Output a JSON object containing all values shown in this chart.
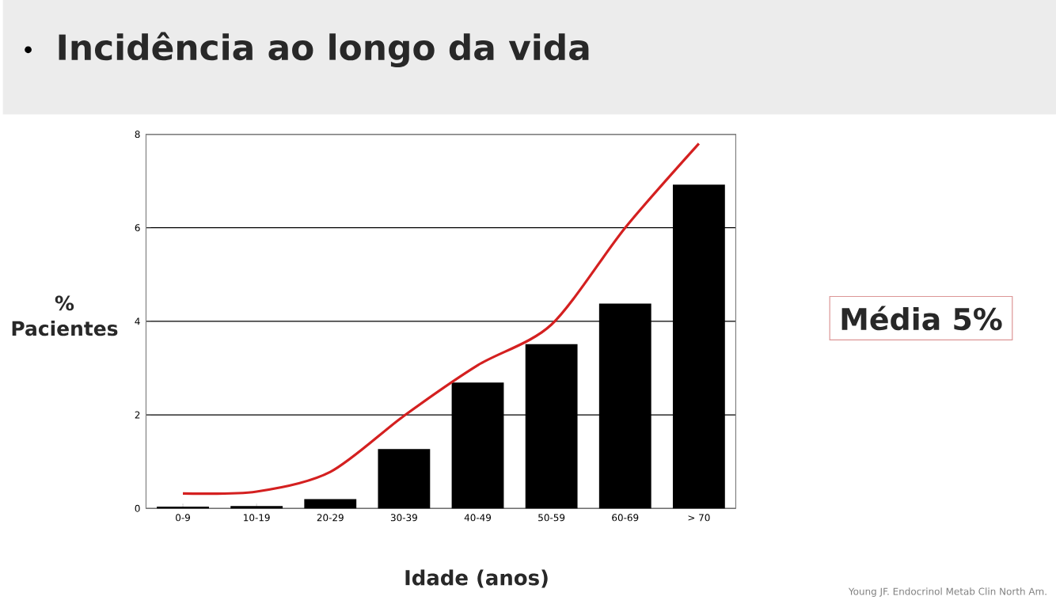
{
  "chart_data": {
    "type": "bar",
    "title": "Incidência ao longo da vida",
    "xlabel": "Idade (anos)",
    "ylabel": "% Pacientes",
    "categories": [
      "0-9",
      "10-19",
      "20-29",
      "30-39",
      "40-49",
      "50-59",
      "60-69",
      "> 70"
    ],
    "series": [
      {
        "color": "#000000",
        "values": [
          0.04,
          0.05,
          0.2,
          1.27,
          2.69,
          3.51,
          4.38,
          6.92
        ]
      },
      {
        "type": "line",
        "color": "#d42020",
        "values": [
          0.32,
          0.36,
          0.78,
          1.98,
          3.06,
          3.93,
          6.0,
          7.8
        ]
      }
    ],
    "ylim": [
      0,
      8
    ],
    "yticks": [
      0,
      2,
      4,
      6,
      8
    ],
    "grid": "y",
    "annotations": [
      "Média 5%",
      "Young JF. Endocrinol Metab Clin North Am."
    ]
  }
}
